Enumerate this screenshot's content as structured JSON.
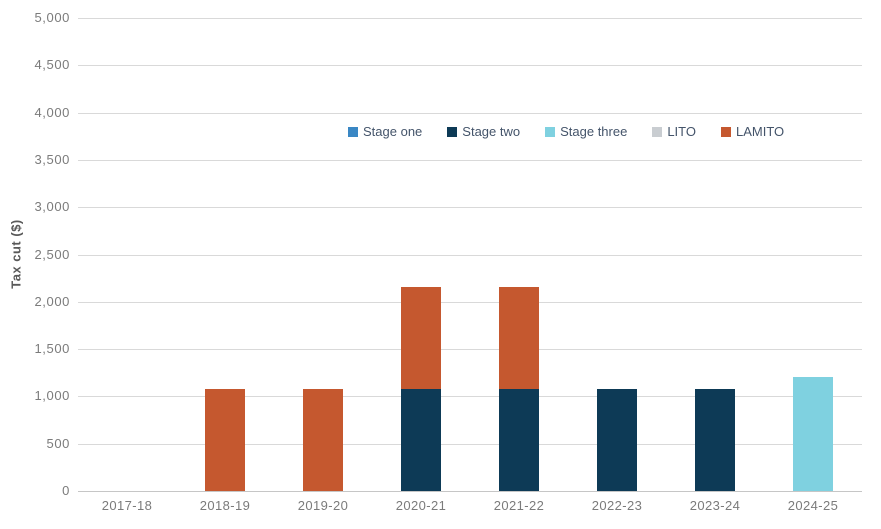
{
  "chart_data": {
    "type": "bar",
    "stacked": true,
    "title": "",
    "xlabel": "",
    "ylabel": "Tax cut ($)",
    "ylim": [
      0,
      5000
    ],
    "ytick_step": 500,
    "grid": true,
    "legend_position": "top-center-inside",
    "categories": [
      "2017-18",
      "2018-19",
      "2019-20",
      "2020-21",
      "2021-22",
      "2022-23",
      "2023-24",
      "2024-25"
    ],
    "series": [
      {
        "name": "Stage one",
        "color": "#3a87c4",
        "values": [
          0,
          0,
          0,
          0,
          0,
          0,
          0,
          0
        ]
      },
      {
        "name": "Stage two",
        "color": "#0d3a56",
        "values": [
          0,
          0,
          0,
          1080,
          1080,
          1080,
          1080,
          0
        ]
      },
      {
        "name": "Stage three",
        "color": "#7fd1e0",
        "values": [
          0,
          0,
          0,
          0,
          0,
          0,
          0,
          1200
        ]
      },
      {
        "name": "LITO",
        "color": "#c9cdd1",
        "values": [
          0,
          0,
          0,
          0,
          0,
          0,
          0,
          0
        ]
      },
      {
        "name": "LAMITO",
        "color": "#c5582f",
        "values": [
          0,
          1080,
          1080,
          1080,
          1080,
          0,
          0,
          0
        ]
      }
    ],
    "colors": {
      "gridline": "#d9d9d9",
      "axis_line": "#c6c6c6",
      "tick_text": "#7b7b7b",
      "legend_text": "#44546a",
      "axis_title_text": "#595959"
    }
  }
}
